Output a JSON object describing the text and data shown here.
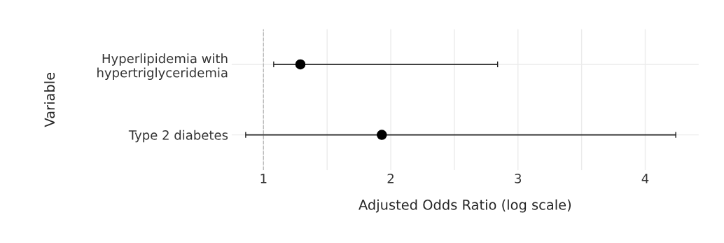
{
  "chart_data": {
    "type": "scatter",
    "orientation": "horizontal",
    "categories": [
      "Hyperlipidemia with\nhypertriglyceridemia",
      "Type 2 diabetes"
    ],
    "values": [
      1.29,
      1.93
    ],
    "errors": [
      [
        1.08,
        2.84
      ],
      [
        0.86,
        4.24
      ]
    ],
    "color": "#000000",
    "marker": "circle",
    "xlabel": "Adjusted Odds Ratio (log scale)",
    "ylabel": "Variable",
    "xlim": [
      0.75,
      4.42
    ],
    "xticks": [
      1,
      {
        "value": 1.5,
        "label": null
      },
      2,
      {
        "value": 2.5,
        "label": null
      },
      3,
      {
        "value": 3.5,
        "label": null
      },
      4
    ],
    "grid": true,
    "ref_lines": [
      {
        "axis": "x",
        "value": 1,
        "color": "#bbbbbb",
        "line_style": "dashed"
      }
    ]
  }
}
